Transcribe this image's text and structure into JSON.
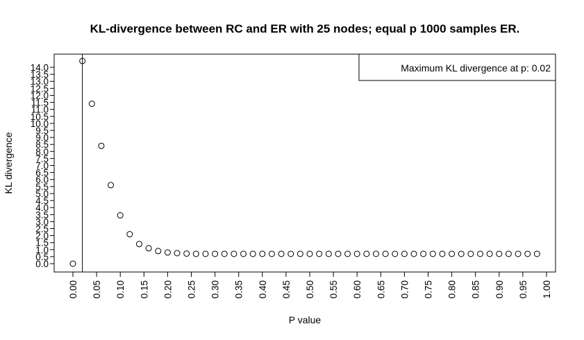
{
  "chart_data": {
    "type": "scatter",
    "title": "KL-divergence between RC and ER with 25 nodes; equal p 1000 samples ER.",
    "xlabel": "P value",
    "ylabel": "KL divergence",
    "xlim": [
      0,
      1
    ],
    "ylim": [
      0,
      14
    ],
    "x_ticks": [
      "0.00",
      "0.05",
      "0.10",
      "0.15",
      "0.20",
      "0.25",
      "0.30",
      "0.35",
      "0.40",
      "0.45",
      "0.50",
      "0.55",
      "0.60",
      "0.65",
      "0.70",
      "0.75",
      "0.80",
      "0.85",
      "0.90",
      "0.95",
      "1.00"
    ],
    "y_ticks": [
      "0.0",
      "0.5",
      "1.0",
      "1.5",
      "2.0",
      "2.5",
      "3.0",
      "3.5",
      "4.0",
      "4.5",
      "5.0",
      "5.5",
      "6.0",
      "6.5",
      "7.0",
      "7.5",
      "8.0",
      "8.5",
      "9.0",
      "9.5",
      "10.0",
      "10.5",
      "11.0",
      "11.5",
      "12.0",
      "12.5",
      "13.0",
      "13.5",
      "14.0"
    ],
    "grid": false,
    "series": [
      {
        "marker": "open-circle",
        "x": [
          0.0,
          0.02,
          0.04,
          0.06,
          0.08,
          0.1,
          0.12,
          0.14,
          0.16,
          0.18,
          0.2,
          0.22,
          0.24,
          0.26,
          0.28,
          0.3,
          0.32,
          0.34,
          0.36,
          0.38,
          0.4,
          0.42,
          0.44,
          0.46,
          0.48,
          0.5,
          0.52,
          0.54,
          0.56,
          0.58,
          0.6,
          0.62,
          0.64,
          0.66,
          0.68,
          0.7,
          0.72,
          0.74,
          0.76,
          0.78,
          0.8,
          0.82,
          0.84,
          0.86,
          0.88,
          0.9,
          0.92,
          0.94,
          0.96,
          0.98
        ],
        "y": [
          0.0,
          14.45,
          11.4,
          8.4,
          5.6,
          3.45,
          2.1,
          1.4,
          1.1,
          0.9,
          0.8,
          0.75,
          0.72,
          0.7,
          0.7,
          0.7,
          0.7,
          0.7,
          0.7,
          0.7,
          0.7,
          0.7,
          0.7,
          0.7,
          0.7,
          0.7,
          0.7,
          0.7,
          0.7,
          0.7,
          0.7,
          0.7,
          0.7,
          0.7,
          0.7,
          0.7,
          0.7,
          0.7,
          0.7,
          0.7,
          0.7,
          0.7,
          0.7,
          0.7,
          0.7,
          0.7,
          0.7,
          0.7,
          0.7,
          0.7
        ]
      }
    ],
    "vline": {
      "x": 0.02
    },
    "legend": {
      "text": "Maximum KL divergence at p: 0.02",
      "position": "top-right"
    }
  }
}
